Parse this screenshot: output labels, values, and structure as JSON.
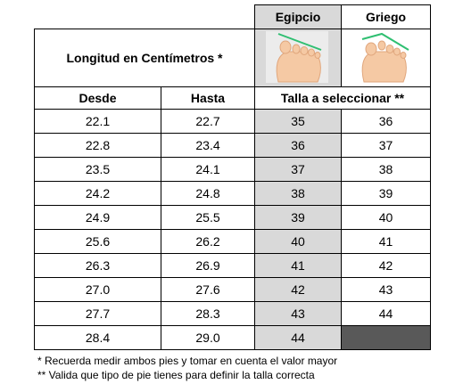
{
  "header": {
    "egipcio": "Egipcio",
    "griego": "Griego",
    "longitud": "Longitud en Centímetros *",
    "desde": "Desde",
    "hasta": "Hasta",
    "talla": "Talla a seleccionar **"
  },
  "table": {
    "rows": [
      [
        "22.1",
        "22.7",
        "35",
        "36"
      ],
      [
        "22.8",
        "23.4",
        "36",
        "37"
      ],
      [
        "23.5",
        "24.1",
        "37",
        "38"
      ],
      [
        "24.2",
        "24.8",
        "38",
        "39"
      ],
      [
        "24.9",
        "25.5",
        "39",
        "40"
      ],
      [
        "25.6",
        "26.2",
        "40",
        "41"
      ],
      [
        "26.3",
        "26.9",
        "41",
        "42"
      ],
      [
        "27.0",
        "27.6",
        "42",
        "43"
      ],
      [
        "27.7",
        "28.3",
        "43",
        "44"
      ],
      [
        "28.4",
        "29.0",
        "44"
      ]
    ]
  },
  "notes": [
    "* Recuerda medir ambos pies y tomar en cuenta el valor mayor",
    "** Valida que tipo de pie tienes para definir la talla correcta"
  ]
}
